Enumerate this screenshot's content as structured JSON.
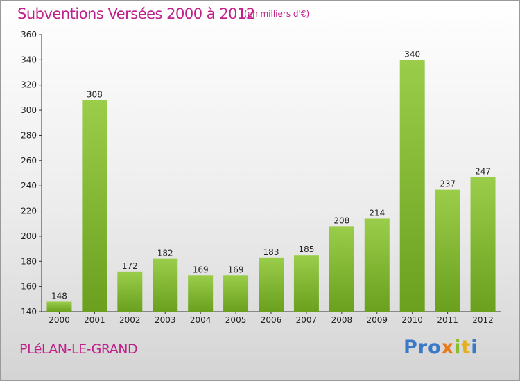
{
  "title": "Subventions Versées 2000 à 2012",
  "unit_note": "(en milliers d'€)",
  "commune": "PLéLAN-LE-GRAND",
  "logo": {
    "text": "Proxiti",
    "parts": [
      "Pro",
      "x",
      "i",
      "t",
      "i"
    ]
  },
  "colors": {
    "title": "#c0208a",
    "bar_light": "#9acd4a",
    "bar_dark": "#6aa01e",
    "axis": "#333333"
  },
  "chart_data": {
    "type": "bar",
    "title": "Subventions Versées 2000 à 2012",
    "xlabel": "",
    "ylabel": "",
    "categories": [
      "2000",
      "2001",
      "2002",
      "2003",
      "2004",
      "2005",
      "2006",
      "2007",
      "2008",
      "2009",
      "2010",
      "2011",
      "2012"
    ],
    "values": [
      148,
      308,
      172,
      182,
      169,
      169,
      183,
      185,
      208,
      214,
      340,
      237,
      247
    ],
    "ylim": [
      140,
      360
    ],
    "yticks": [
      140,
      160,
      180,
      200,
      220,
      240,
      260,
      280,
      300,
      320,
      340,
      360
    ],
    "grid": false,
    "data_labels": true
  }
}
